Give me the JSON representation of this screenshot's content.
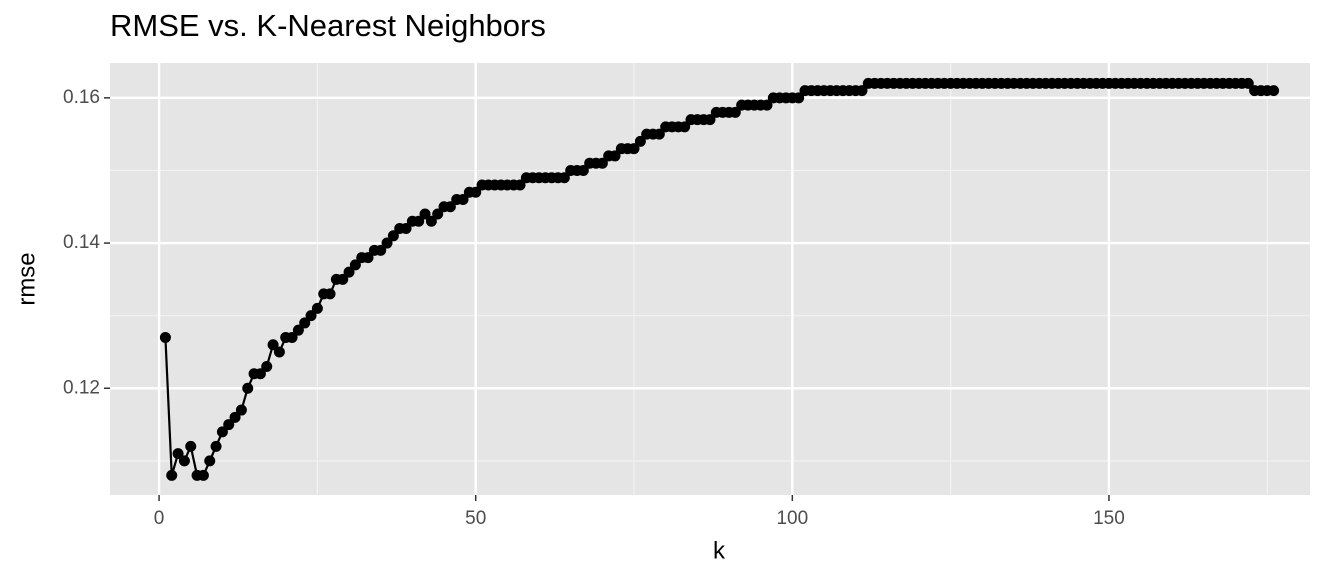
{
  "chart_data": {
    "type": "line",
    "title": "RMSE vs. K-Nearest Neighbors",
    "x_label": "k",
    "y_label": "rmse",
    "x": [
      1,
      2,
      3,
      4,
      5,
      6,
      7,
      8,
      9,
      10,
      11,
      12,
      13,
      14,
      15,
      16,
      17,
      18,
      19,
      20,
      21,
      22,
      23,
      24,
      25,
      26,
      27,
      28,
      29,
      30,
      31,
      32,
      33,
      34,
      35,
      36,
      37,
      38,
      39,
      40,
      41,
      42,
      43,
      44,
      45,
      46,
      47,
      48,
      49,
      50,
      51,
      52,
      53,
      54,
      55,
      56,
      57,
      58,
      59,
      60,
      61,
      62,
      63,
      64,
      65,
      66,
      67,
      68,
      69,
      70,
      71,
      72,
      73,
      74,
      75,
      76,
      77,
      78,
      79,
      80,
      81,
      82,
      83,
      84,
      85,
      86,
      87,
      88,
      89,
      90,
      91,
      92,
      93,
      94,
      95,
      96,
      97,
      98,
      99,
      100,
      101,
      102,
      103,
      104,
      105,
      106,
      107,
      108,
      109,
      110,
      111,
      112,
      113,
      114,
      115,
      116,
      117,
      118,
      119,
      120,
      121,
      122,
      123,
      124,
      125,
      126,
      127,
      128,
      129,
      130,
      131,
      132,
      133,
      134,
      135,
      136,
      137,
      138,
      139,
      140,
      141,
      142,
      143,
      144,
      145,
      146,
      147,
      148,
      149,
      150,
      151,
      152,
      153,
      154,
      155,
      156,
      157,
      158,
      159,
      160,
      161,
      162,
      163,
      164,
      165,
      166,
      167,
      168,
      169,
      170,
      171,
      172,
      173,
      174,
      175,
      176
    ],
    "values": [
      0.127,
      0.108,
      0.111,
      0.11,
      0.112,
      0.108,
      0.108,
      0.11,
      0.112,
      0.114,
      0.115,
      0.116,
      0.117,
      0.12,
      0.122,
      0.122,
      0.123,
      0.126,
      0.125,
      0.127,
      0.127,
      0.128,
      0.129,
      0.13,
      0.131,
      0.133,
      0.133,
      0.135,
      0.135,
      0.136,
      0.137,
      0.138,
      0.138,
      0.139,
      0.139,
      0.14,
      0.141,
      0.142,
      0.142,
      0.143,
      0.143,
      0.144,
      0.143,
      0.144,
      0.145,
      0.145,
      0.146,
      0.146,
      0.147,
      0.147,
      0.148,
      0.148,
      0.148,
      0.148,
      0.148,
      0.148,
      0.148,
      0.149,
      0.149,
      0.149,
      0.149,
      0.149,
      0.149,
      0.149,
      0.15,
      0.15,
      0.15,
      0.151,
      0.151,
      0.151,
      0.152,
      0.152,
      0.153,
      0.153,
      0.153,
      0.154,
      0.155,
      0.155,
      0.155,
      0.156,
      0.156,
      0.156,
      0.156,
      0.157,
      0.157,
      0.157,
      0.157,
      0.158,
      0.158,
      0.158,
      0.158,
      0.159,
      0.159,
      0.159,
      0.159,
      0.159,
      0.16,
      0.16,
      0.16,
      0.16,
      0.16,
      0.161,
      0.161,
      0.161,
      0.161,
      0.161,
      0.161,
      0.161,
      0.161,
      0.161,
      0.161,
      0.162,
      0.162,
      0.162,
      0.162,
      0.162,
      0.162,
      0.162,
      0.162,
      0.162,
      0.162,
      0.162,
      0.162,
      0.162,
      0.162,
      0.162,
      0.162,
      0.162,
      0.162,
      0.162,
      0.162,
      0.162,
      0.162,
      0.162,
      0.162,
      0.162,
      0.162,
      0.162,
      0.162,
      0.162,
      0.162,
      0.162,
      0.162,
      0.162,
      0.162,
      0.162,
      0.162,
      0.162,
      0.162,
      0.162,
      0.162,
      0.162,
      0.162,
      0.162,
      0.162,
      0.162,
      0.162,
      0.162,
      0.162,
      0.162,
      0.162,
      0.162,
      0.162,
      0.162,
      0.162,
      0.162,
      0.162,
      0.162,
      0.162,
      0.162,
      0.162,
      0.162,
      0.161,
      0.161,
      0.161,
      0.161
    ],
    "color": "#000000",
    "xlim": [
      -7.75,
      181.75
    ],
    "xticks": [
      0,
      50,
      100,
      150
    ],
    "xminor": [
      25,
      75,
      125,
      175
    ],
    "ylim": [
      0.1053,
      0.1648
    ],
    "yticks": [
      0.12,
      0.14,
      0.16
    ],
    "yminor": [
      0.11,
      0.13,
      0.15
    ],
    "grid": true
  }
}
